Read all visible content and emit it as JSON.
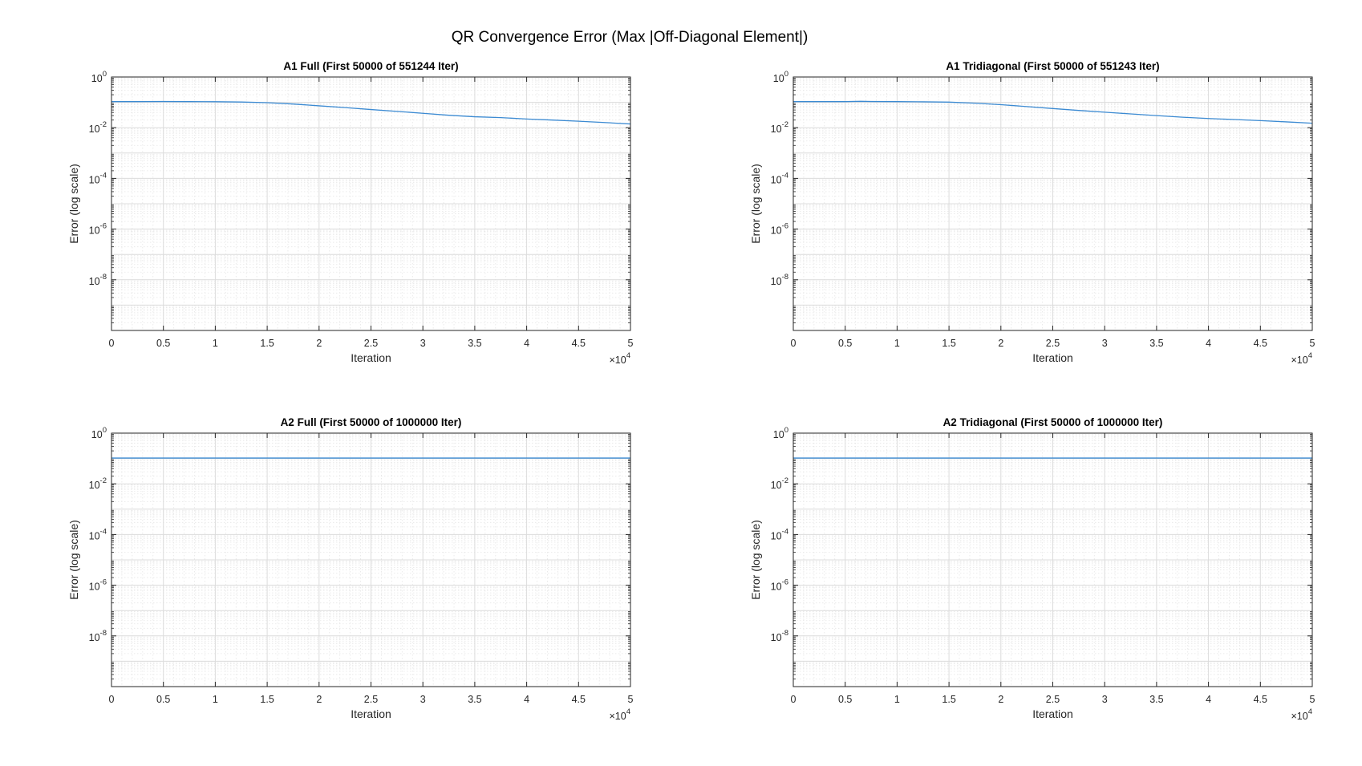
{
  "figure": {
    "title": "QR Convergence Error (Max |Off-Diagonal Element|)"
  },
  "colors": {
    "line": "#3b8ad2",
    "axes": "#262626",
    "major_grid": "#dcdcdc",
    "minor_grid": "#e6e6e6"
  },
  "chart_data": [
    {
      "type": "line",
      "title": "A1 Full (First 50000 of 551244 Iter)",
      "xlabel": "Iteration",
      "ylabel": "Error (log scale)",
      "x_exponent_label": "×10",
      "x_exponent": "4",
      "y_scale": "log",
      "xlim": [
        0,
        50000
      ],
      "ylim": [
        1e-10,
        1
      ],
      "grid": "major and minor",
      "x_ticks": [
        "0",
        "0.5",
        "1",
        "1.5",
        "2",
        "2.5",
        "3",
        "3.5",
        "4",
        "4.5",
        "5"
      ],
      "y_ticks": [
        {
          "base": "10",
          "exp": "0"
        },
        {
          "base": "10",
          "exp": "-2"
        },
        {
          "base": "10",
          "exp": "-4"
        },
        {
          "base": "10",
          "exp": "-6"
        },
        {
          "base": "10",
          "exp": "-8"
        }
      ],
      "series": [
        {
          "x": [
            0,
            2500,
            5000,
            7500,
            10000,
            12500,
            15000,
            17500,
            20000,
            22500,
            25000,
            27500,
            30000,
            32500,
            35000,
            37500,
            40000,
            42500,
            45000,
            47500,
            50000
          ],
          "y": [
            0.107,
            0.107,
            0.108,
            0.107,
            0.106,
            0.103,
            0.097,
            0.086,
            0.073,
            0.062,
            0.052,
            0.044,
            0.037,
            0.031,
            0.027,
            0.025,
            0.022,
            0.02,
            0.018,
            0.016,
            0.014
          ]
        }
      ]
    },
    {
      "type": "line",
      "title": "A1 Tridiagonal (First 50000 of 551243 Iter)",
      "xlabel": "Iteration",
      "ylabel": "Error (log scale)",
      "x_exponent_label": "×10",
      "x_exponent": "4",
      "y_scale": "log",
      "xlim": [
        0,
        50000
      ],
      "ylim": [
        1e-10,
        1
      ],
      "grid": "major and minor",
      "x_ticks": [
        "0",
        "0.5",
        "1",
        "1.5",
        "2",
        "2.5",
        "3",
        "3.5",
        "4",
        "4.5",
        "5"
      ],
      "y_ticks": [
        {
          "base": "10",
          "exp": "0"
        },
        {
          "base": "10",
          "exp": "-2"
        },
        {
          "base": "10",
          "exp": "-4"
        },
        {
          "base": "10",
          "exp": "-6"
        },
        {
          "base": "10",
          "exp": "-8"
        }
      ],
      "series": [
        {
          "x": [
            0,
            2500,
            5000,
            6500,
            7500,
            10000,
            12500,
            15000,
            17500,
            20000,
            22500,
            25000,
            27500,
            30000,
            32500,
            35000,
            37500,
            40000,
            42500,
            45000,
            47500,
            50000
          ],
          "y": [
            0.107,
            0.107,
            0.107,
            0.11,
            0.108,
            0.107,
            0.105,
            0.102,
            0.093,
            0.081,
            0.068,
            0.057,
            0.048,
            0.041,
            0.035,
            0.03,
            0.026,
            0.023,
            0.021,
            0.019,
            0.017,
            0.015
          ]
        }
      ]
    },
    {
      "type": "line",
      "title": "A2 Full (First 50000 of 1000000 Iter)",
      "xlabel": "Iteration",
      "ylabel": "Error (log scale)",
      "x_exponent_label": "×10",
      "x_exponent": "4",
      "y_scale": "log",
      "xlim": [
        0,
        50000
      ],
      "ylim": [
        1e-10,
        1
      ],
      "grid": "major and minor",
      "x_ticks": [
        "0",
        "0.5",
        "1",
        "1.5",
        "2",
        "2.5",
        "3",
        "3.5",
        "4",
        "4.5",
        "5"
      ],
      "y_ticks": [
        {
          "base": "10",
          "exp": "0"
        },
        {
          "base": "10",
          "exp": "-2"
        },
        {
          "base": "10",
          "exp": "-4"
        },
        {
          "base": "10",
          "exp": "-6"
        },
        {
          "base": "10",
          "exp": "-8"
        }
      ],
      "series": [
        {
          "x": [
            0,
            50000
          ],
          "y": [
            0.104,
            0.104
          ]
        }
      ]
    },
    {
      "type": "line",
      "title": "A2 Tridiagonal (First 50000 of 1000000 Iter)",
      "xlabel": "Iteration",
      "ylabel": "Error (log scale)",
      "x_exponent_label": "×10",
      "x_exponent": "4",
      "y_scale": "log",
      "xlim": [
        0,
        50000
      ],
      "ylim": [
        1e-10,
        1
      ],
      "grid": "major and minor",
      "x_ticks": [
        "0",
        "0.5",
        "1",
        "1.5",
        "2",
        "2.5",
        "3",
        "3.5",
        "4",
        "4.5",
        "5"
      ],
      "y_ticks": [
        {
          "base": "10",
          "exp": "0"
        },
        {
          "base": "10",
          "exp": "-2"
        },
        {
          "base": "10",
          "exp": "-4"
        },
        {
          "base": "10",
          "exp": "-6"
        },
        {
          "base": "10",
          "exp": "-8"
        }
      ],
      "series": [
        {
          "x": [
            0,
            50000
          ],
          "y": [
            0.104,
            0.104
          ]
        }
      ]
    }
  ]
}
